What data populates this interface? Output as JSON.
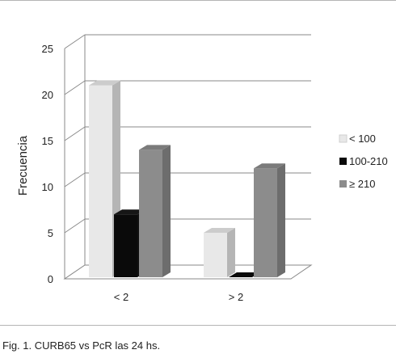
{
  "chart_data": {
    "type": "bar",
    "style": "3d-clustered",
    "categories": [
      "< 2",
      "> 2"
    ],
    "series": [
      {
        "name": "< 100",
        "values": [
          21,
          5
        ],
        "color": "#e8e8e8"
      },
      {
        "name": "100-210",
        "values": [
          7,
          0
        ],
        "color": "#0a0a0a"
      },
      {
        "name": "≥ 210",
        "values": [
          14,
          12
        ],
        "color": "#8c8c8c"
      }
    ],
    "ylabel": "Frecuencia",
    "xlabel": "",
    "ylim": [
      0,
      25
    ],
    "yticks": [
      0,
      5,
      10,
      15,
      20,
      25
    ],
    "grid": true,
    "legend": "right"
  },
  "caption": "Fig. 1. CURB65 vs PcR las 24 hs."
}
